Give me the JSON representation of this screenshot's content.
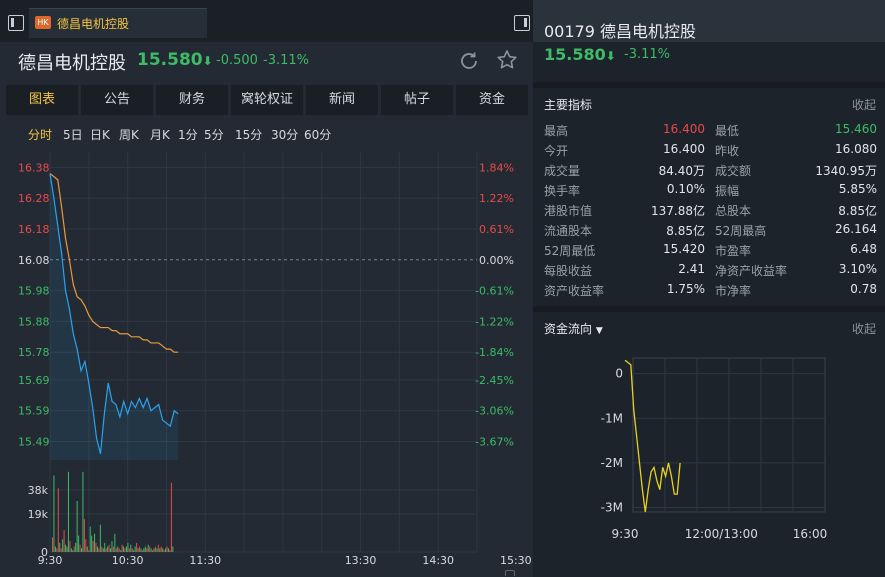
{
  "tab": {
    "badge": "HK",
    "label": "德昌电机控股"
  },
  "quote": {
    "name": "德昌电机控股",
    "price": "15.580",
    "arrow": "⬇",
    "change": "-0.500",
    "pct": "-3.11%"
  },
  "nav_tabs": [
    {
      "label": "图表",
      "active": true
    },
    {
      "label": "公告",
      "active": false
    },
    {
      "label": "财务",
      "active": false
    },
    {
      "label": "窝轮权证",
      "active": false
    },
    {
      "label": "新闻",
      "active": false
    },
    {
      "label": "帖子",
      "active": false
    },
    {
      "label": "资金",
      "active": false
    }
  ],
  "periods": [
    {
      "label": "分时",
      "active": true
    },
    {
      "label": "5日",
      "active": false
    },
    {
      "label": "日K",
      "active": false
    },
    {
      "label": "周K",
      "active": false
    },
    {
      "label": "月K",
      "active": false
    },
    {
      "label": "1分",
      "active": false
    },
    {
      "label": "5分",
      "active": false
    },
    {
      "label": "15分",
      "active": false
    },
    {
      "label": "30分",
      "active": false
    },
    {
      "label": "60分",
      "active": false
    }
  ],
  "chart_data": [
    {
      "type": "line",
      "title": "",
      "y_left_ticks": [
        "16.38",
        "16.28",
        "16.18",
        "16.08",
        "15.98",
        "15.88",
        "15.78",
        "15.69",
        "15.59",
        "15.49"
      ],
      "y_right_ticks": [
        "1.84%",
        "1.22%",
        "0.61%",
        "0.00%",
        "-0.61%",
        "-1.22%",
        "-1.84%",
        "-2.45%",
        "-3.06%",
        "-3.67%"
      ],
      "prev_close": 16.08,
      "ylim": [
        15.43,
        16.43
      ],
      "x_ticks": [
        "9:30",
        "10:30",
        "11:30",
        "13:30",
        "14:30",
        "15:30"
      ],
      "series": [
        {
          "color": "#29a3f0",
          "x": [
            "9:30",
            "9:33",
            "9:36",
            "9:39",
            "9:42",
            "9:45",
            "9:48",
            "9:51",
            "9:54",
            "9:57",
            "10:00",
            "10:03",
            "10:06",
            "10:09",
            "10:12",
            "10:15",
            "10:18",
            "10:21",
            "10:24",
            "10:27",
            "10:30",
            "10:33",
            "10:36",
            "10:39",
            "10:42",
            "10:45",
            "10:48",
            "10:51",
            "10:54",
            "10:57",
            "11:00",
            "11:03",
            "11:06",
            "11:09"
          ],
          "values": [
            16.36,
            16.28,
            16.19,
            16.1,
            15.98,
            15.92,
            15.84,
            15.79,
            15.72,
            15.75,
            15.68,
            15.6,
            15.5,
            15.45,
            15.58,
            15.68,
            15.62,
            15.61,
            15.57,
            15.62,
            15.58,
            15.62,
            15.6,
            15.63,
            15.6,
            15.63,
            15.59,
            15.6,
            15.61,
            15.56,
            15.55,
            15.54,
            15.59,
            15.58
          ]
        },
        {
          "color": "#e89a3c",
          "x": [
            "9:30",
            "9:33",
            "9:36",
            "9:39",
            "9:42",
            "9:45",
            "9:48",
            "9:51",
            "9:54",
            "9:57",
            "10:00",
            "10:03",
            "10:06",
            "10:09",
            "10:12",
            "10:15",
            "10:18",
            "10:21",
            "10:24",
            "10:27",
            "10:30",
            "10:33",
            "10:36",
            "10:39",
            "10:42",
            "10:45",
            "10:48",
            "10:51",
            "10:54",
            "10:57",
            "11:00",
            "11:03",
            "11:06",
            "11:09"
          ],
          "values": [
            16.36,
            16.35,
            16.34,
            16.25,
            16.15,
            16.08,
            16.0,
            15.96,
            15.95,
            15.93,
            15.9,
            15.88,
            15.87,
            15.86,
            15.86,
            15.86,
            15.85,
            15.85,
            15.84,
            15.84,
            15.84,
            15.83,
            15.83,
            15.83,
            15.82,
            15.82,
            15.81,
            15.81,
            15.81,
            15.8,
            15.79,
            15.79,
            15.78,
            15.78
          ]
        }
      ]
    },
    {
      "type": "bar",
      "title": "",
      "y_ticks": [
        "38k",
        "19k",
        "0"
      ],
      "ylim": [
        0,
        45000
      ],
      "values": [
        8000,
        42000,
        3000,
        2000,
        35000,
        5000,
        2000,
        7000,
        12000,
        4000,
        3000,
        44000,
        6000,
        2000,
        1000,
        3000,
        5000,
        28000,
        9000,
        4000,
        2000,
        44000,
        18000,
        7000,
        3000,
        1000,
        14000,
        9000,
        6000,
        10000,
        5000,
        3000,
        2000,
        15000,
        3000,
        2000,
        5000,
        2000,
        3000,
        4000,
        2000,
        6000,
        3000,
        10000,
        2000,
        3000,
        2000,
        1000,
        4000,
        3000,
        2000,
        3000,
        5000,
        2000,
        4000,
        2000,
        1000,
        3000,
        5000,
        2000,
        3000,
        2000,
        1000,
        2000,
        3000,
        2000,
        4000,
        3000,
        2000,
        1000,
        2000,
        3000,
        2000,
        4000,
        2000,
        3000,
        2000,
        1000,
        2000,
        3000,
        2000,
        1000,
        38000,
        3000
      ],
      "colors": [
        "up",
        "down",
        "down",
        "up",
        "up",
        "down",
        "up",
        "down",
        "up",
        "down",
        "down",
        "down",
        "up",
        "down",
        "down",
        "up",
        "down",
        "down",
        "down",
        "up",
        "down",
        "down",
        "up",
        "up",
        "down",
        "up",
        "down",
        "down",
        "up",
        "down",
        "up",
        "down",
        "up",
        "down",
        "up",
        "down",
        "down",
        "up",
        "down",
        "up",
        "down",
        "down",
        "up",
        "down",
        "up",
        "down",
        "up",
        "down",
        "up",
        "down",
        "up",
        "down",
        "down",
        "up",
        "down",
        "up",
        "down",
        "down",
        "up",
        "down",
        "up",
        "down",
        "up",
        "down",
        "down",
        "up",
        "down",
        "up",
        "down",
        "up",
        "down",
        "up",
        "down",
        "up",
        "down",
        "up",
        "down",
        "up",
        "down",
        "up",
        "down",
        "up",
        "up",
        "down"
      ]
    },
    {
      "type": "line",
      "title": "资金流向",
      "y_ticks": [
        "0",
        "-1M",
        "-2M",
        "-3M"
      ],
      "ylim": [
        -3.1,
        0.35
      ],
      "x_ticks": [
        "9:30",
        "12:00/13:00",
        "16:00"
      ],
      "series": [
        {
          "color": "#e8d21d",
          "values": [
            0.3,
            0.25,
            0.2,
            -0.8,
            -1.4,
            -2.0,
            -2.6,
            -3.1,
            -2.6,
            -2.2,
            -2.1,
            -2.4,
            -2.6,
            -2.1,
            -2.3,
            -2.0,
            -2.3,
            -2.7,
            -2.7,
            -2.0
          ]
        }
      ]
    }
  ],
  "right": {
    "code": "00179",
    "name": "德昌电机控股",
    "price": "15.580",
    "arrow": "⬇",
    "pct": "-3.11%",
    "metrics_title": "主要指标",
    "collapse_label": "收起",
    "metrics": [
      {
        "l1": "最高",
        "v1": "16.400",
        "c1": "up",
        "l2": "最低",
        "v2": "15.460",
        "c2": "down"
      },
      {
        "l1": "今开",
        "v1": "16.400",
        "c1": "",
        "l2": "昨收",
        "v2": "16.080",
        "c2": ""
      },
      {
        "l1": "成交量",
        "v1": "84.40万",
        "c1": "",
        "l2": "成交额",
        "v2": "1340.95万",
        "c2": ""
      },
      {
        "l1": "换手率",
        "v1": "0.10%",
        "c1": "",
        "l2": "振幅",
        "v2": "5.85%",
        "c2": ""
      },
      {
        "l1": "港股市值",
        "v1": "137.88亿",
        "c1": "",
        "l2": "总股本",
        "v2": "8.85亿",
        "c2": ""
      },
      {
        "l1": "流通股本",
        "v1": "8.85亿",
        "c1": "",
        "l2": "52周最高",
        "v2": "26.164",
        "c2": ""
      },
      {
        "l1": "52周最低",
        "v1": "15.420",
        "c1": "",
        "l2": "市盈率",
        "v2": "6.48",
        "c2": ""
      },
      {
        "l1": "每股收益",
        "v1": "2.41",
        "c1": "",
        "l2": "净资产收益率",
        "v2": "3.10%",
        "c2": ""
      },
      {
        "l1": "资产收益率",
        "v1": "1.75%",
        "c1": "",
        "l2": "市净率",
        "v2": "0.78",
        "c2": ""
      }
    ],
    "flow_title": "资金流向",
    "flow_collapse": "收起"
  },
  "colors": {
    "up": "#e84a4a",
    "down": "#3dbb66",
    "accent": "#f5c542",
    "price_line": "#29a3f0",
    "avg_line": "#e89a3c",
    "flow_line": "#e8d21d"
  }
}
